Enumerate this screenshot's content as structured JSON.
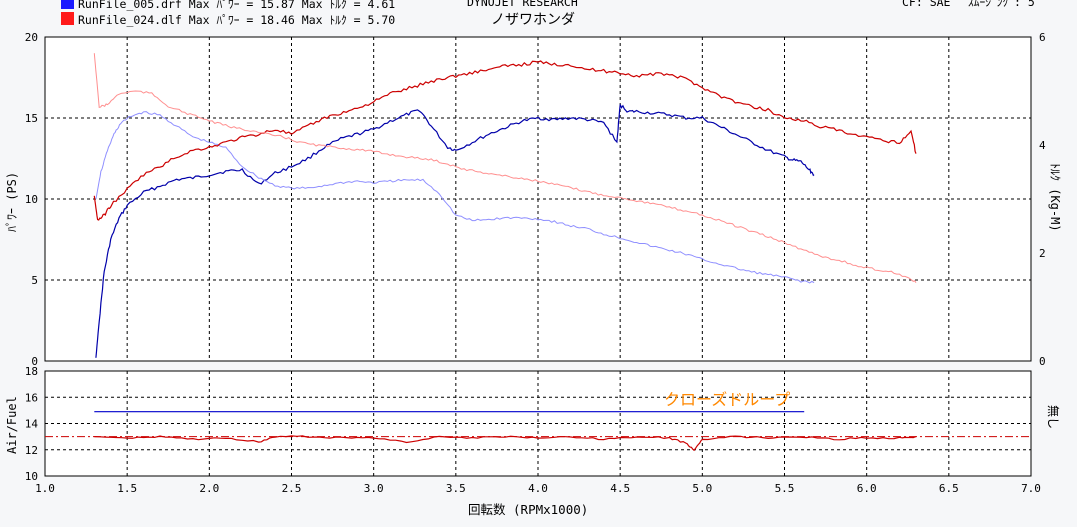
{
  "header": {
    "brand": "DYNOJET  RESEARCH",
    "shop": "ノザワホンダ",
    "cf_label": "CF: SAE",
    "smoothing_label": "ｽﾑｰｼﾞﾝｸﾞ: 5"
  },
  "chart_data": [
    {
      "type": "line",
      "ylabel": "ﾊﾟﾜｰ (PS)",
      "y2label": "ﾄﾙｸ (Kg-M)",
      "xlim": [
        1.0,
        7.0
      ],
      "ylim": [
        0,
        20
      ],
      "y2lim": [
        0,
        6
      ],
      "yticks": [
        "0",
        "5",
        "10",
        "15",
        "20"
      ],
      "y2ticks": [
        "0",
        "2",
        "4",
        "6"
      ],
      "grid": true,
      "legend": [
        {
          "label": "RunFile_005.drf Max ﾊﾟﾜｰ = 15.87   Max ﾄﾙｸ = 4.61",
          "color": "#1a1aff"
        },
        {
          "label": "RunFile_024.dlf Max ﾊﾟﾜｰ = 18.46   Max ﾄﾙｸ = 5.70",
          "color": "#ff1a1a"
        }
      ],
      "series": [
        {
          "kind": "power",
          "color": "#0000aa",
          "x": [
            1.31,
            1.33,
            1.36,
            1.4,
            1.45,
            1.5,
            1.6,
            1.7,
            1.8,
            1.9,
            2.0,
            2.1,
            2.2,
            2.3,
            2.4,
            2.5,
            2.6,
            2.7,
            2.8,
            2.9,
            3.0,
            3.1,
            3.2,
            3.28,
            3.35,
            3.45,
            3.5,
            3.6,
            3.7,
            3.8,
            3.9,
            4.0,
            4.1,
            4.2,
            4.3,
            4.4,
            4.48,
            4.5,
            4.55,
            4.6,
            4.7,
            4.8,
            4.9,
            5.0,
            5.1,
            5.2,
            5.3,
            5.4,
            5.5,
            5.55,
            5.6,
            5.65,
            5.68
          ],
          "y": [
            0.2,
            2.5,
            5.5,
            7.5,
            8.8,
            9.6,
            10.4,
            10.8,
            11.2,
            11.3,
            11.5,
            11.7,
            11.8,
            10.9,
            11.6,
            12.0,
            12.5,
            13.2,
            13.7,
            14.0,
            14.3,
            14.8,
            15.2,
            15.5,
            14.5,
            13.2,
            13.0,
            13.5,
            14.0,
            14.4,
            14.8,
            15.0,
            14.9,
            15.0,
            14.9,
            14.7,
            13.5,
            15.8,
            15.4,
            15.4,
            15.3,
            15.2,
            15.0,
            15.0,
            14.5,
            14.0,
            13.5,
            13.0,
            12.6,
            12.4,
            12.3,
            11.8,
            11.5
          ]
        },
        {
          "kind": "torque",
          "color": "#8f8fff",
          "x": [
            1.31,
            1.34,
            1.38,
            1.42,
            1.46,
            1.52,
            1.6,
            1.7,
            1.8,
            1.9,
            2.0,
            2.1,
            2.2,
            2.3,
            2.4,
            2.5,
            2.6,
            2.7,
            2.8,
            2.9,
            3.0,
            3.1,
            3.2,
            3.3,
            3.4,
            3.5,
            3.6,
            3.7,
            3.8,
            3.9,
            4.0,
            4.1,
            4.2,
            4.3,
            4.4,
            4.5,
            4.6,
            4.7,
            4.8,
            4.9,
            5.0,
            5.1,
            5.2,
            5.3,
            5.4,
            5.5,
            5.6,
            5.68
          ],
          "y": [
            3.0,
            3.5,
            3.9,
            4.2,
            4.4,
            4.53,
            4.61,
            4.55,
            4.35,
            4.15,
            4.05,
            3.95,
            3.6,
            3.4,
            3.25,
            3.2,
            3.2,
            3.25,
            3.3,
            3.33,
            3.3,
            3.33,
            3.35,
            3.35,
            3.1,
            2.7,
            2.6,
            2.62,
            2.65,
            2.65,
            2.63,
            2.58,
            2.5,
            2.45,
            2.35,
            2.28,
            2.2,
            2.12,
            2.05,
            1.98,
            1.88,
            1.8,
            1.72,
            1.65,
            1.6,
            1.55,
            1.48,
            1.45
          ]
        },
        {
          "kind": "power",
          "color": "#cc0000",
          "x": [
            1.3,
            1.32,
            1.36,
            1.4,
            1.5,
            1.6,
            1.7,
            1.8,
            1.9,
            2.0,
            2.1,
            2.2,
            2.3,
            2.4,
            2.5,
            2.6,
            2.7,
            2.8,
            2.9,
            3.0,
            3.1,
            3.2,
            3.3,
            3.4,
            3.5,
            3.6,
            3.7,
            3.8,
            3.9,
            4.0,
            4.1,
            4.2,
            4.3,
            4.4,
            4.5,
            4.6,
            4.7,
            4.8,
            4.9,
            5.0,
            5.1,
            5.2,
            5.3,
            5.4,
            5.5,
            5.6,
            5.7,
            5.8,
            5.9,
            6.0,
            6.1,
            6.2,
            6.27,
            6.3
          ],
          "y": [
            10.2,
            8.7,
            9.0,
            9.6,
            10.6,
            11.5,
            12.0,
            12.6,
            13.0,
            13.2,
            13.5,
            13.8,
            14.0,
            14.3,
            14.0,
            14.5,
            15.0,
            15.3,
            15.6,
            16.0,
            16.5,
            16.8,
            17.1,
            17.4,
            17.6,
            17.8,
            18.0,
            18.2,
            18.3,
            18.46,
            18.3,
            18.3,
            18.0,
            17.9,
            17.8,
            17.6,
            17.7,
            17.7,
            17.4,
            16.9,
            16.4,
            16.0,
            15.7,
            15.5,
            15.0,
            14.9,
            14.5,
            14.3,
            14.0,
            13.8,
            13.6,
            13.5,
            14.2,
            12.8
          ]
        },
        {
          "kind": "torque",
          "color": "#ff8f8f",
          "x": [
            1.3,
            1.33,
            1.38,
            1.45,
            1.55,
            1.65,
            1.75,
            1.85,
            1.95,
            2.05,
            2.15,
            2.25,
            2.35,
            2.45,
            2.55,
            2.65,
            2.75,
            2.85,
            2.95,
            3.05,
            3.15,
            3.25,
            3.35,
            3.45,
            3.55,
            3.65,
            3.75,
            3.85,
            3.95,
            4.05,
            4.15,
            4.25,
            4.35,
            4.45,
            4.55,
            4.65,
            4.75,
            4.85,
            4.95,
            5.05,
            5.15,
            5.25,
            5.35,
            5.45,
            5.55,
            5.65,
            5.75,
            5.85,
            5.95,
            6.05,
            6.15,
            6.25,
            6.3
          ],
          "y": [
            5.7,
            4.7,
            4.75,
            4.95,
            5.0,
            4.95,
            4.72,
            4.6,
            4.5,
            4.4,
            4.32,
            4.27,
            4.2,
            4.15,
            4.05,
            4.0,
            3.96,
            3.93,
            3.9,
            3.85,
            3.8,
            3.76,
            3.73,
            3.65,
            3.55,
            3.5,
            3.45,
            3.4,
            3.36,
            3.3,
            3.24,
            3.17,
            3.1,
            3.05,
            3.0,
            2.94,
            2.88,
            2.81,
            2.75,
            2.65,
            2.56,
            2.45,
            2.35,
            2.25,
            2.13,
            2.02,
            1.92,
            1.85,
            1.75,
            1.7,
            1.65,
            1.55,
            1.45
          ]
        }
      ]
    },
    {
      "type": "line",
      "ylabel": "Air/Fuel",
      "y2label": "無し",
      "annotation": "クローズドループ",
      "annotation_color": "#ff8800",
      "xlabel": "回転数 (RPMx1000)",
      "xlim": [
        1.0,
        7.0
      ],
      "ylim": [
        10,
        18
      ],
      "xticks": [
        "1.0",
        "1.5",
        "2.0",
        "2.5",
        "3.0",
        "3.5",
        "4.0",
        "4.5",
        "5.0",
        "5.5",
        "6.0",
        "6.5",
        "7.0"
      ],
      "yticks": [
        "10",
        "12",
        "14",
        "16",
        "18"
      ],
      "reference_line": {
        "y": 13.0,
        "color": "#cc0000",
        "style": "dash-dot"
      },
      "grid": true,
      "series": [
        {
          "color": "#0000cc",
          "x": [
            1.3,
            5.62
          ],
          "y": [
            14.9,
            14.9
          ]
        },
        {
          "color": "#cc0000",
          "x": [
            1.3,
            1.5,
            1.7,
            1.9,
            2.1,
            2.3,
            2.4,
            2.6,
            2.8,
            3.0,
            3.2,
            3.4,
            3.6,
            3.8,
            4.0,
            4.2,
            4.4,
            4.6,
            4.8,
            4.9,
            4.95,
            5.0,
            5.2,
            5.4,
            5.6,
            5.8,
            6.0,
            6.2,
            6.3
          ],
          "y": [
            13.0,
            12.9,
            13.0,
            12.8,
            12.9,
            12.6,
            13.0,
            13.0,
            12.9,
            12.9,
            12.6,
            13.0,
            12.9,
            13.0,
            12.9,
            13.0,
            12.8,
            13.0,
            12.9,
            12.5,
            12.0,
            12.8,
            13.0,
            12.9,
            13.0,
            12.8,
            12.9,
            12.9,
            13.0
          ]
        }
      ]
    }
  ]
}
